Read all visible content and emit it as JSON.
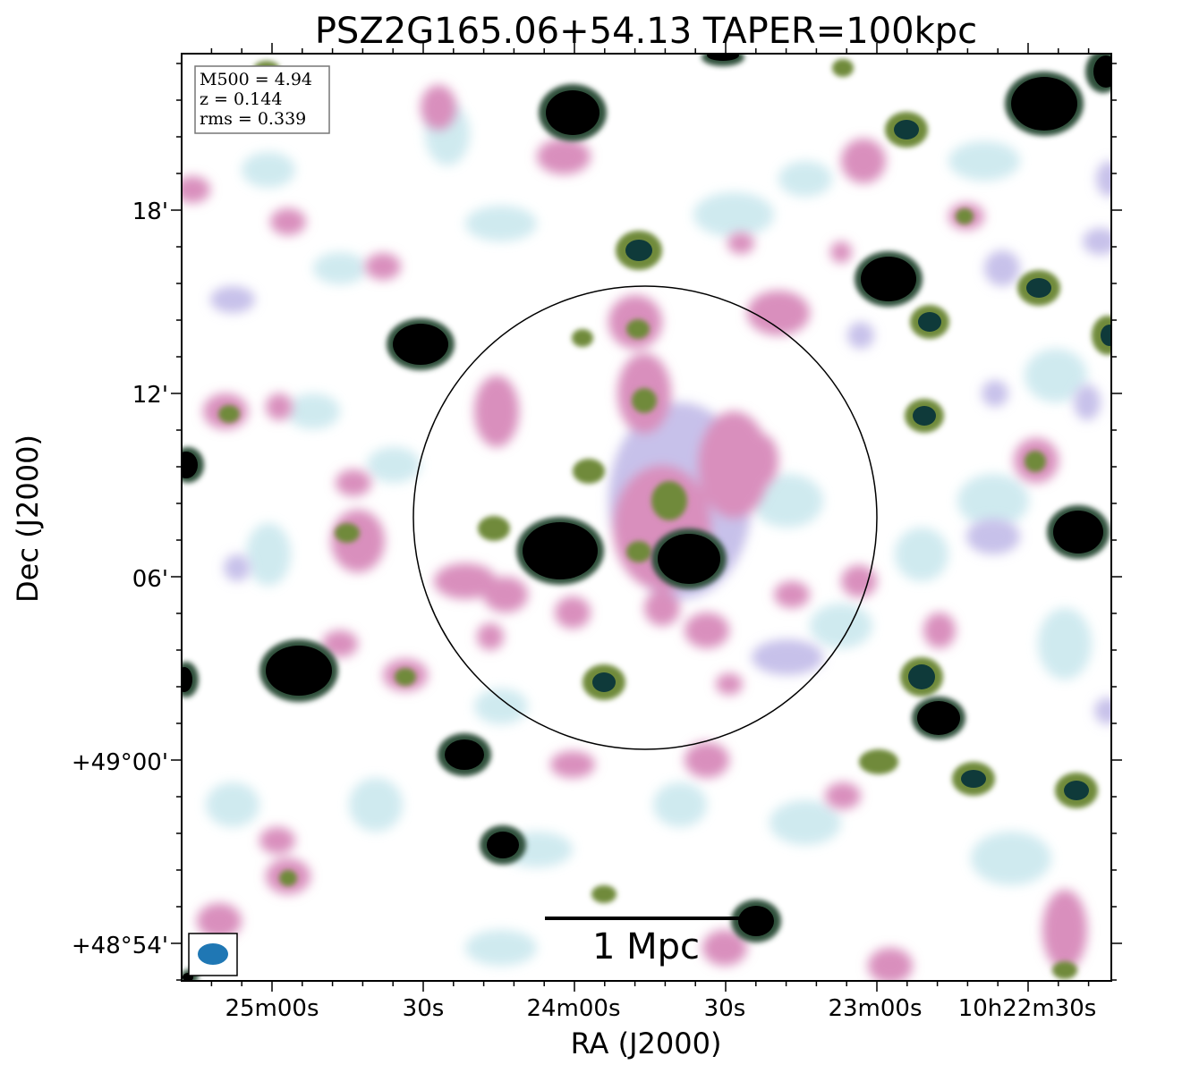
{
  "title": "PSZ2G165.06+54.13 TAPER=100kpc",
  "xlabel": "RA (J2000)",
  "ylabel": "Dec (J2000)",
  "x_ticks": [
    "25m00s",
    "30s",
    "24m00s",
    "30s",
    "23m00s",
    "10h22m30s"
  ],
  "y_ticks": [
    "18'",
    "12'",
    "06'",
    "+49°00'",
    "+48°54'"
  ],
  "info": {
    "m500": "M500 = 4.94",
    "z": "z = 0.144",
    "rms": "rms = 0.339"
  },
  "scalebar_label": "1 Mpc",
  "colors": {
    "faint": "#cde9ef",
    "lavender": "#c7c1ea",
    "pink": "#d98fbd",
    "olive": "#6f8a3a",
    "teal": "#0f3a3a",
    "black": "#000000",
    "beam": "#1f77b4"
  }
}
